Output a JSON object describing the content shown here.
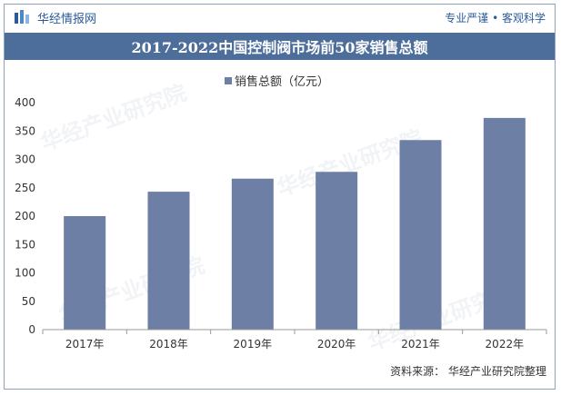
{
  "header": {
    "brand_name": "华经情报网",
    "slogan": "专业严谨 • 客观科学"
  },
  "footer": {
    "source": "资料来源：  华经产业研究院整理"
  },
  "colors": {
    "bar": "#6d7fa5",
    "title_bg": "#4d6e9b",
    "brand": "#2a5a9a"
  },
  "chart_data": {
    "type": "bar",
    "title": "2017-2022中国控制阀市场前50家销售总额",
    "categories": [
      "2017年",
      "2018年",
      "2019年",
      "2020年",
      "2021年",
      "2022年"
    ],
    "series": [
      {
        "name": "销售总额（亿元）",
        "values": [
          200,
          243,
          266,
          278,
          334,
          373
        ]
      }
    ],
    "xlabel": "",
    "ylabel": "",
    "ylim": [
      0,
      400
    ],
    "yticks": [
      0,
      50,
      100,
      150,
      200,
      250,
      300,
      350,
      400
    ],
    "grid": false,
    "legend_position": "top-center"
  }
}
